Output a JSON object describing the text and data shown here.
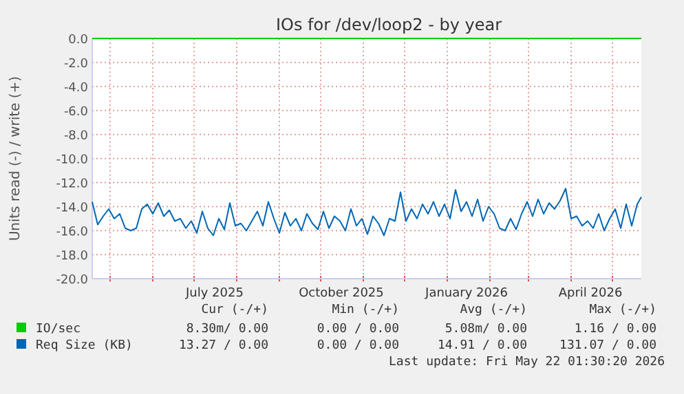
{
  "chart_data": {
    "type": "line",
    "title": "IOs for /dev/loop2 - by year",
    "ylabel": "Units read (-) / write (+)",
    "x": [
      "2025-04-18",
      "2025-04-22",
      "2025-04-26",
      "2025-04-30",
      "2025-05-04",
      "2025-05-08",
      "2025-05-12",
      "2025-05-16",
      "2025-05-20",
      "2025-05-24",
      "2025-05-28",
      "2025-06-01",
      "2025-06-05",
      "2025-06-09",
      "2025-06-13",
      "2025-06-17",
      "2025-06-21",
      "2025-06-25",
      "2025-06-29",
      "2025-07-03",
      "2025-07-07",
      "2025-07-11",
      "2025-07-15",
      "2025-07-19",
      "2025-07-23",
      "2025-07-27",
      "2025-07-31",
      "2025-08-04",
      "2025-08-08",
      "2025-08-12",
      "2025-08-16",
      "2025-08-20",
      "2025-08-24",
      "2025-08-28",
      "2025-09-01",
      "2025-09-05",
      "2025-09-09",
      "2025-09-13",
      "2025-09-17",
      "2025-09-21",
      "2025-09-25",
      "2025-09-29",
      "2025-10-03",
      "2025-10-07",
      "2025-10-11",
      "2025-10-15",
      "2025-10-19",
      "2025-10-23",
      "2025-10-27",
      "2025-10-31",
      "2025-11-04",
      "2025-11-08",
      "2025-11-12",
      "2025-11-16",
      "2025-11-20",
      "2025-11-24",
      "2025-11-28",
      "2025-12-02",
      "2025-12-06",
      "2025-12-10",
      "2025-12-14",
      "2025-12-18",
      "2025-12-22",
      "2025-12-26",
      "2025-12-30",
      "2026-01-03",
      "2026-01-07",
      "2026-01-11",
      "2026-01-15",
      "2026-01-19",
      "2026-01-23",
      "2026-01-27",
      "2026-01-31",
      "2026-02-04",
      "2026-02-08",
      "2026-02-12",
      "2026-02-16",
      "2026-02-20",
      "2026-02-24",
      "2026-02-28",
      "2026-03-04",
      "2026-03-08",
      "2026-03-12",
      "2026-03-16",
      "2026-03-20",
      "2026-03-24",
      "2026-03-28",
      "2026-04-01",
      "2026-04-05",
      "2026-04-09",
      "2026-04-13",
      "2026-04-17",
      "2026-04-21",
      "2026-04-25",
      "2026-04-29",
      "2026-05-03",
      "2026-05-07",
      "2026-05-11",
      "2026-05-15",
      "2026-05-19",
      "2026-05-22"
    ],
    "series": [
      {
        "name": "IO/sec",
        "color": "#00cc00",
        "x": [
          "2025-04-18",
          "2026-05-22"
        ],
        "values": [
          0,
          0
        ]
      },
      {
        "name": "Req Size (KB)",
        "color": "#0066b3",
        "values": [
          -13.6,
          -15.5,
          -14.8,
          -14.2,
          -15.0,
          -14.6,
          -15.8,
          -16.0,
          -15.8,
          -14.2,
          -13.8,
          -14.6,
          -13.7,
          -14.8,
          -14.3,
          -15.2,
          -15.0,
          -15.8,
          -15.2,
          -16.2,
          -14.4,
          -15.8,
          -16.4,
          -15.0,
          -15.9,
          -13.7,
          -15.6,
          -15.4,
          -16.0,
          -15.2,
          -14.4,
          -15.6,
          -13.6,
          -15.0,
          -16.2,
          -14.5,
          -15.6,
          -15.0,
          -16.0,
          -14.6,
          -15.4,
          -15.9,
          -14.4,
          -15.8,
          -14.8,
          -15.2,
          -16.0,
          -14.2,
          -15.6,
          -15.0,
          -16.3,
          -14.8,
          -15.4,
          -16.4,
          -15.0,
          -15.2,
          -12.8,
          -15.2,
          -14.2,
          -15.0,
          -13.8,
          -14.6,
          -13.6,
          -14.8,
          -13.8,
          -15.0,
          -12.6,
          -14.4,
          -13.6,
          -14.8,
          -13.4,
          -15.2,
          -14.0,
          -14.6,
          -15.8,
          -16.0,
          -15.0,
          -15.9,
          -14.6,
          -13.6,
          -14.8,
          -13.4,
          -14.6,
          -13.7,
          -14.2,
          -13.5,
          -12.5,
          -15.0,
          -14.8,
          -15.6,
          -15.2,
          -15.8,
          -14.6,
          -16.0,
          -15.0,
          -14.2,
          -15.8,
          -13.8,
          -15.6,
          -13.8,
          -13.2
        ]
      }
    ],
    "ylim": [
      -20,
      0
    ],
    "yticks": [
      {
        "value": 0,
        "label": "0.0"
      },
      {
        "value": -2,
        "label": "-2.0"
      },
      {
        "value": -4,
        "label": "-4.0"
      },
      {
        "value": -6,
        "label": "-6.0"
      },
      {
        "value": -8,
        "label": "-8.0"
      },
      {
        "value": -10,
        "label": "-10.0"
      },
      {
        "value": -12,
        "label": "-12.0"
      },
      {
        "value": -14,
        "label": "-14.0"
      },
      {
        "value": -16,
        "label": "-16.0"
      },
      {
        "value": -18,
        "label": "-18.0"
      },
      {
        "value": -20,
        "label": "-20.0"
      }
    ],
    "xlim": [
      "2025-04-18",
      "2026-05-22"
    ],
    "xticks": [
      {
        "value": "2025-05-01",
        "label": null
      },
      {
        "value": "2025-06-01",
        "label": null
      },
      {
        "value": "2025-07-01",
        "label": null
      },
      {
        "value": "2025-07-16",
        "label": "July 2025"
      },
      {
        "value": "2025-08-01",
        "label": null
      },
      {
        "value": "2025-09-01",
        "label": null
      },
      {
        "value": "2025-10-01",
        "label": null
      },
      {
        "value": "2025-10-16",
        "label": "October 2025"
      },
      {
        "value": "2025-11-01",
        "label": null
      },
      {
        "value": "2025-12-01",
        "label": null
      },
      {
        "value": "2026-01-01",
        "label": null
      },
      {
        "value": "2026-01-15",
        "label": "January 2026"
      },
      {
        "value": "2026-02-01",
        "label": null
      },
      {
        "value": "2026-03-01",
        "label": null
      },
      {
        "value": "2026-04-01",
        "label": null
      },
      {
        "value": "2026-04-15",
        "label": "April 2026"
      },
      {
        "value": "2026-05-01",
        "label": null
      }
    ],
    "grid": true,
    "legend": "bottom left",
    "annotations": [
      "Cur (-/+)",
      "Min (-/+)",
      "Avg (-/+)",
      "Max (-/+)",
      "8.30m/ 0.00",
      "0.00 / 0.00",
      "5.08m/ 0.00",
      "1.16 / 0.00",
      "13.27 / 0.00",
      "0.00 / 0.00",
      "14.91 / 0.00",
      "131.07 / 0.00",
      "Last update: Fri May 22 01:30:20 2026"
    ]
  }
}
